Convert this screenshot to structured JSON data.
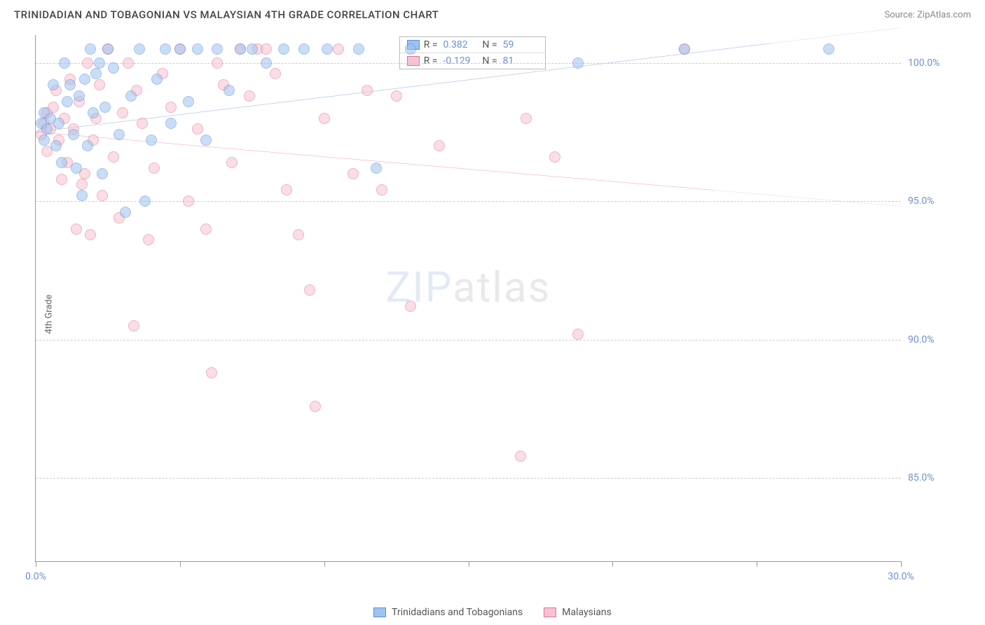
{
  "title": "TRINIDADIAN AND TOBAGONIAN VS MALAYSIAN 4TH GRADE CORRELATION CHART",
  "source": "Source: ZipAtlas.com",
  "y_axis_label": "4th Grade",
  "watermark": {
    "left": "ZIP",
    "right": "atlas"
  },
  "chart": {
    "type": "scatter",
    "xlim": [
      0,
      30
    ],
    "ylim": [
      82,
      101
    ],
    "x_ticks": [
      0,
      5,
      10,
      15,
      20,
      25,
      30
    ],
    "x_tick_labels": {
      "0": "0.0%",
      "30": "30.0%"
    },
    "y_ticks": [
      85,
      90,
      95,
      100
    ],
    "y_tick_labels": {
      "85": "85.0%",
      "90": "90.0%",
      "95": "95.0%",
      "100": "100.0%"
    },
    "grid_color": "#cccccc",
    "background_color": "#ffffff",
    "label_color": "#6b8fd4",
    "title_color": "#444444",
    "title_fontsize": 15,
    "label_fontsize": 14,
    "marker_radius": 8,
    "marker_opacity": 0.55,
    "series": [
      {
        "name": "Trinidadians and Tobagonians",
        "color_fill": "#9ec3f0",
        "color_stroke": "#5b8fd6",
        "R": "0.382",
        "N": "59",
        "trend": {
          "x1": 0,
          "y1": 97.5,
          "x2": 25.5,
          "y2": 100.7,
          "extrapolate_to": 30
        },
        "points": [
          [
            0.2,
            97.8
          ],
          [
            0.3,
            98.2
          ],
          [
            0.3,
            97.2
          ],
          [
            0.4,
            97.6
          ],
          [
            0.5,
            98.0
          ],
          [
            0.6,
            99.2
          ],
          [
            0.7,
            97.0
          ],
          [
            0.8,
            97.8
          ],
          [
            0.9,
            96.4
          ],
          [
            1.0,
            100.0
          ],
          [
            1.1,
            98.6
          ],
          [
            1.2,
            99.2
          ],
          [
            1.3,
            97.4
          ],
          [
            1.4,
            96.2
          ],
          [
            1.5,
            98.8
          ],
          [
            1.6,
            95.2
          ],
          [
            1.7,
            99.4
          ],
          [
            1.8,
            97.0
          ],
          [
            1.9,
            100.5
          ],
          [
            2.0,
            98.2
          ],
          [
            2.1,
            99.6
          ],
          [
            2.2,
            100.0
          ],
          [
            2.3,
            96.0
          ],
          [
            2.4,
            98.4
          ],
          [
            2.5,
            100.5
          ],
          [
            2.7,
            99.8
          ],
          [
            2.9,
            97.4
          ],
          [
            3.1,
            94.6
          ],
          [
            3.3,
            98.8
          ],
          [
            3.6,
            100.5
          ],
          [
            3.8,
            95.0
          ],
          [
            4.0,
            97.2
          ],
          [
            4.2,
            99.4
          ],
          [
            4.5,
            100.5
          ],
          [
            4.7,
            97.8
          ],
          [
            5.0,
            100.5
          ],
          [
            5.3,
            98.6
          ],
          [
            5.6,
            100.5
          ],
          [
            5.9,
            97.2
          ],
          [
            6.3,
            100.5
          ],
          [
            6.7,
            99.0
          ],
          [
            7.1,
            100.5
          ],
          [
            7.5,
            100.5
          ],
          [
            8.0,
            100.0
          ],
          [
            8.6,
            100.5
          ],
          [
            9.3,
            100.5
          ],
          [
            10.1,
            100.5
          ],
          [
            11.2,
            100.5
          ],
          [
            11.8,
            96.2
          ],
          [
            13.0,
            100.5
          ],
          [
            18.8,
            100.0
          ],
          [
            22.5,
            100.5
          ],
          [
            27.5,
            100.5
          ]
        ]
      },
      {
        "name": "Malaysians",
        "color_fill": "#f7c3d0",
        "color_stroke": "#e27396",
        "R": "-0.129",
        "N": "81",
        "trend": {
          "x1": 0,
          "y1": 97.5,
          "x2": 23.5,
          "y2": 95.4,
          "extrapolate_to": 30
        },
        "points": [
          [
            0.2,
            97.4
          ],
          [
            0.3,
            97.8
          ],
          [
            0.4,
            98.2
          ],
          [
            0.4,
            96.8
          ],
          [
            0.5,
            97.6
          ],
          [
            0.6,
            98.4
          ],
          [
            0.7,
            99.0
          ],
          [
            0.8,
            97.2
          ],
          [
            0.9,
            95.8
          ],
          [
            1.0,
            98.0
          ],
          [
            1.1,
            96.4
          ],
          [
            1.2,
            99.4
          ],
          [
            1.3,
            97.6
          ],
          [
            1.4,
            94.0
          ],
          [
            1.5,
            98.6
          ],
          [
            1.6,
            95.6
          ],
          [
            1.7,
            96.0
          ],
          [
            1.8,
            100.0
          ],
          [
            1.9,
            93.8
          ],
          [
            2.0,
            97.2
          ],
          [
            2.1,
            98.0
          ],
          [
            2.2,
            99.2
          ],
          [
            2.3,
            95.2
          ],
          [
            2.5,
            100.5
          ],
          [
            2.7,
            96.6
          ],
          [
            2.9,
            94.4
          ],
          [
            3.0,
            98.2
          ],
          [
            3.2,
            100.0
          ],
          [
            3.4,
            90.5
          ],
          [
            3.5,
            99.0
          ],
          [
            3.7,
            97.8
          ],
          [
            3.9,
            93.6
          ],
          [
            4.1,
            96.2
          ],
          [
            4.4,
            99.6
          ],
          [
            4.7,
            98.4
          ],
          [
            5.0,
            100.5
          ],
          [
            5.3,
            95.0
          ],
          [
            5.6,
            97.6
          ],
          [
            5.9,
            94.0
          ],
          [
            6.1,
            88.8
          ],
          [
            6.3,
            100.0
          ],
          [
            6.5,
            99.2
          ],
          [
            6.8,
            96.4
          ],
          [
            7.1,
            100.5
          ],
          [
            7.4,
            98.8
          ],
          [
            7.7,
            100.5
          ],
          [
            8.0,
            100.5
          ],
          [
            8.3,
            99.6
          ],
          [
            8.7,
            95.4
          ],
          [
            9.1,
            93.8
          ],
          [
            9.5,
            91.8
          ],
          [
            9.7,
            87.6
          ],
          [
            10.0,
            98.0
          ],
          [
            10.5,
            100.5
          ],
          [
            11.0,
            96.0
          ],
          [
            11.5,
            99.0
          ],
          [
            12.0,
            95.4
          ],
          [
            12.5,
            98.8
          ],
          [
            13.0,
            91.2
          ],
          [
            14.0,
            97.0
          ],
          [
            16.8,
            85.8
          ],
          [
            17.0,
            98.0
          ],
          [
            18.0,
            96.6
          ],
          [
            18.8,
            90.2
          ],
          [
            22.5,
            100.5
          ]
        ]
      }
    ]
  },
  "stats_legend": {
    "rows": [
      {
        "series_idx": 0,
        "R_label": "R =",
        "N_label": "N ="
      },
      {
        "series_idx": 1,
        "R_label": "R =",
        "N_label": "N ="
      }
    ]
  },
  "bottom_legend": [
    {
      "series_idx": 0
    },
    {
      "series_idx": 1
    }
  ]
}
